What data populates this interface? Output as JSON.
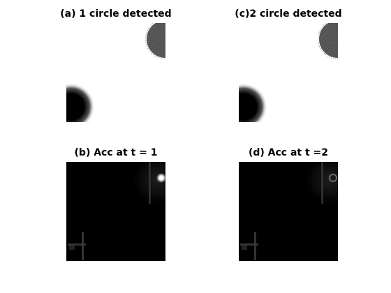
{
  "panels": {
    "a": {
      "title": "(a) 1 circle detected"
    },
    "c": {
      "title": "(c)2 circle detected"
    },
    "b": {
      "title": "(b) Acc at t = 1"
    },
    "d": {
      "title": "(d) Acc at t =2"
    }
  },
  "colors": {
    "background": "#ffffff",
    "circle_fill": "#1a1a1a",
    "accumulator_bg": "#000000",
    "accumulator_peak": "#ffffff"
  }
}
